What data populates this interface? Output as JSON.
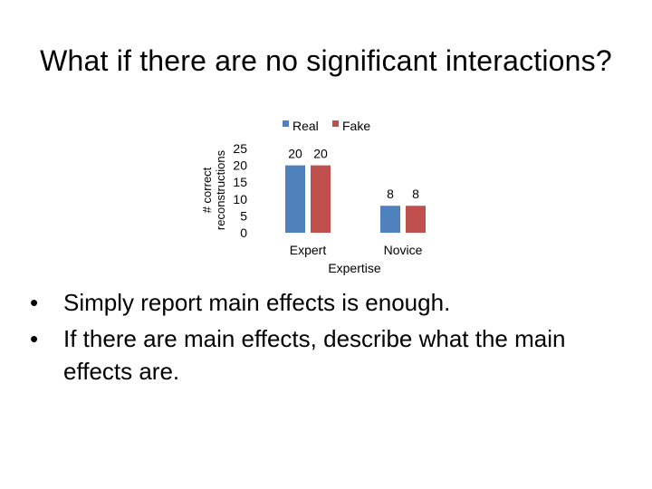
{
  "slide": {
    "title": "What if there are no significant interactions?",
    "bullets": [
      "Simply report main effects is enough.",
      "If there are main effects, describe what the main effects are."
    ]
  },
  "chart_data": {
    "type": "bar",
    "categories": [
      "Expert",
      "Novice"
    ],
    "series": [
      {
        "name": "Real",
        "values": [
          20,
          8
        ],
        "color": "#4F81BD"
      },
      {
        "name": "Fake",
        "values": [
          20,
          8
        ],
        "color": "#C0504D"
      }
    ],
    "xlabel": "Expertise",
    "ylabel": "# correct reconstructions",
    "yticks": [
      "25",
      "20",
      "15",
      "10",
      "5",
      "0"
    ],
    "ylim": [
      0,
      25
    ],
    "data_labels": true,
    "legend": "top",
    "grid": false
  }
}
